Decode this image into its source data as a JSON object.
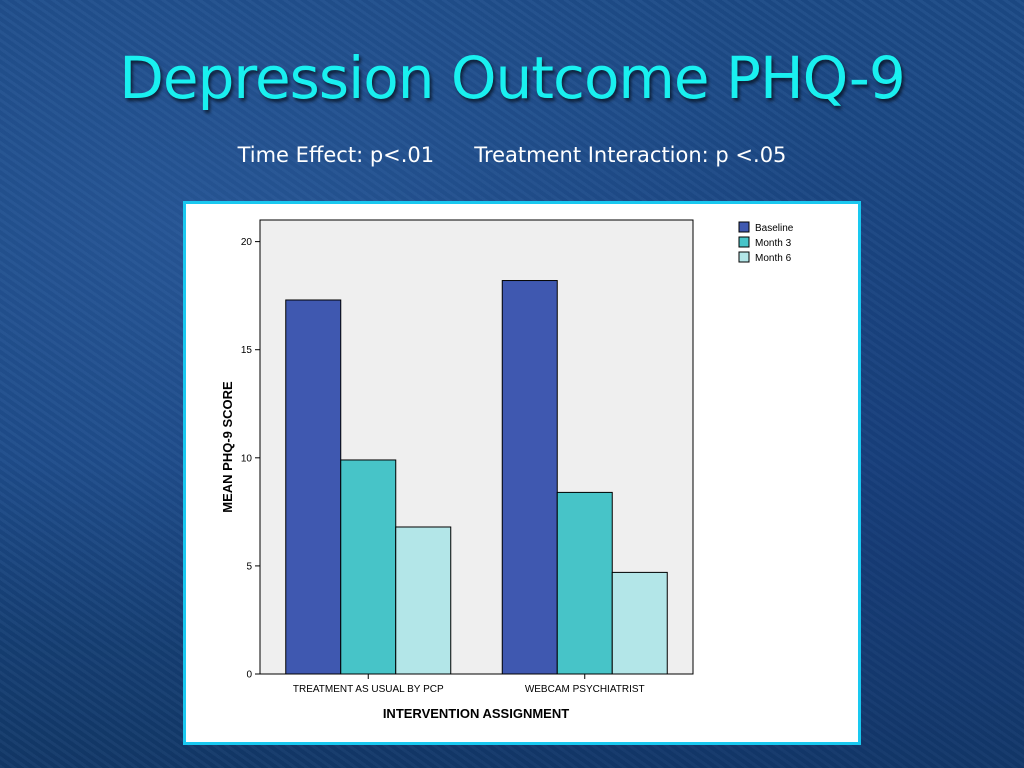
{
  "slide": {
    "title": "Depression Outcome PHQ-9",
    "subtitle": "Time Effect: p<.01      Treatment Interaction: p <.05"
  },
  "colors": {
    "title": "#19f0f0",
    "frame": "#19c8f0",
    "plot_bg": "#efefef",
    "series": [
      "#3f58b0",
      "#47c4c8",
      "#b3e6e8"
    ]
  },
  "chart_data": {
    "type": "bar",
    "categories": [
      "TREATMENT AS USUAL BY PCP",
      "WEBCAM PSYCHIATRIST"
    ],
    "series": [
      {
        "name": "Baseline",
        "values": [
          17.3,
          18.2
        ]
      },
      {
        "name": "Month 3",
        "values": [
          9.9,
          8.4
        ]
      },
      {
        "name": "Month 6",
        "values": [
          6.8,
          4.7
        ]
      }
    ],
    "xlabel": "INTERVENTION ASSIGNMENT",
    "ylabel": "MEAN PHQ-9 SCORE",
    "ylim": [
      0,
      21
    ],
    "yticks": [
      0,
      5,
      10,
      15,
      20
    ],
    "grid": false,
    "legend_position": "top-right"
  }
}
